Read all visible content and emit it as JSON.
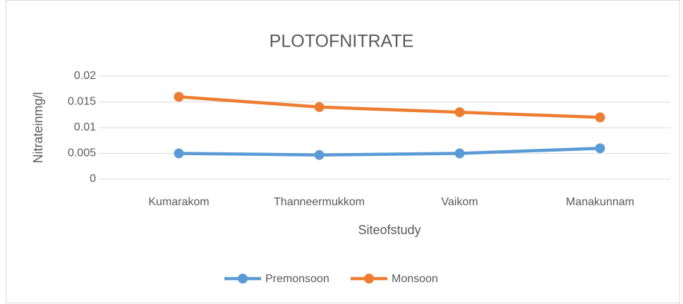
{
  "chart_data": {
    "type": "line",
    "title": "PLOTOFNITRATE",
    "x_label": "Siteofstudy",
    "y_label": "Nitrateinmg/l",
    "categories": [
      "Kumarakom",
      "Thanneermukkom",
      "Vaikom",
      "Manakunnam"
    ],
    "series": [
      {
        "name": "Premonsoon",
        "color": "#5b9bd5",
        "values": [
          0.005,
          0.0047,
          0.005,
          0.006
        ]
      },
      {
        "name": "Monsoon",
        "color": "#ed7d31",
        "values": [
          0.016,
          0.014,
          0.013,
          0.012
        ]
      }
    ],
    "ylim": [
      0,
      0.02
    ],
    "yticks": [
      0,
      0.005,
      0.01,
      0.015,
      0.02
    ],
    "grid": true,
    "legend": "bottom"
  }
}
